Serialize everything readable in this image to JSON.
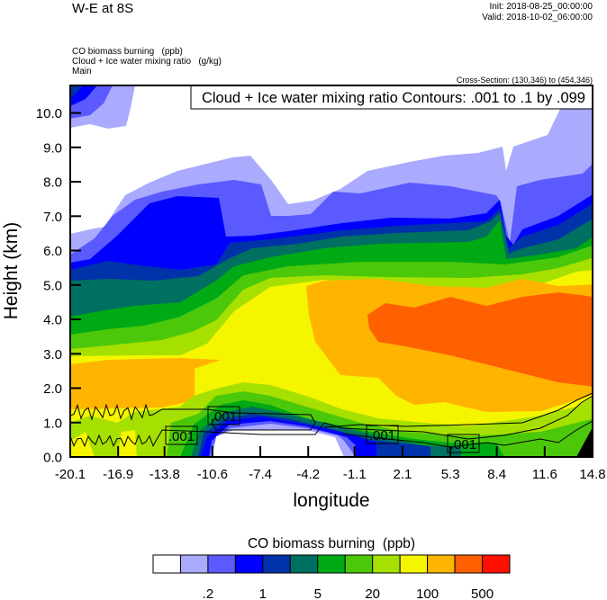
{
  "header": {
    "main_title": "W-E at 8S",
    "init": "Init: 2018-08-25_00:00:00",
    "valid": "Valid: 2018-10-02_06:00:00",
    "field1": "CO biomass burning   (ppb)",
    "field2": "Cloud + Ice water mixing ratio   (g/kg)",
    "field3": "Main",
    "cross_section": "Cross-Section: (130,346) to (454,346)"
  },
  "chart_data": {
    "type": "heatmap",
    "subtype": "filled contour cross-section with line contour overlay",
    "xlabel": "longitude",
    "ylabel": "Height (km)",
    "xlim": [
      -20.1,
      14.8
    ],
    "ylim": [
      0.0,
      10.8
    ],
    "x_ticks": [
      "-20.1",
      "-16.9",
      "-13.8",
      "-10.6",
      "-7.4",
      "-4.2",
      "-1.1",
      "2.1",
      "5.3",
      "8.4",
      "11.6",
      "14.8"
    ],
    "y_ticks": [
      "0.0",
      "1.0",
      "2.0",
      "3.0",
      "4.0",
      "5.0",
      "6.0",
      "7.0",
      "8.0",
      "9.0",
      "10.0"
    ],
    "overlay_legend": "Cloud + Ice water mixing ratio Contours: .001 to .1 by .099",
    "contour_labels": [
      ".001",
      ".001",
      ".001",
      ".001"
    ],
    "colorbar": {
      "title": "CO biomass burning  (ppb)",
      "colors": [
        "#FFFFFF",
        "#AAAAFF",
        "#5A5AFF",
        "#0000FF",
        "#0033AA",
        "#007060",
        "#00AA14",
        "#4CC80A",
        "#A6E000",
        "#F5F500",
        "#FFB400",
        "#FF6000",
        "#FF1000"
      ],
      "labels": [
        ".2",
        "1",
        "5",
        "20",
        "100",
        "500"
      ]
    }
  }
}
